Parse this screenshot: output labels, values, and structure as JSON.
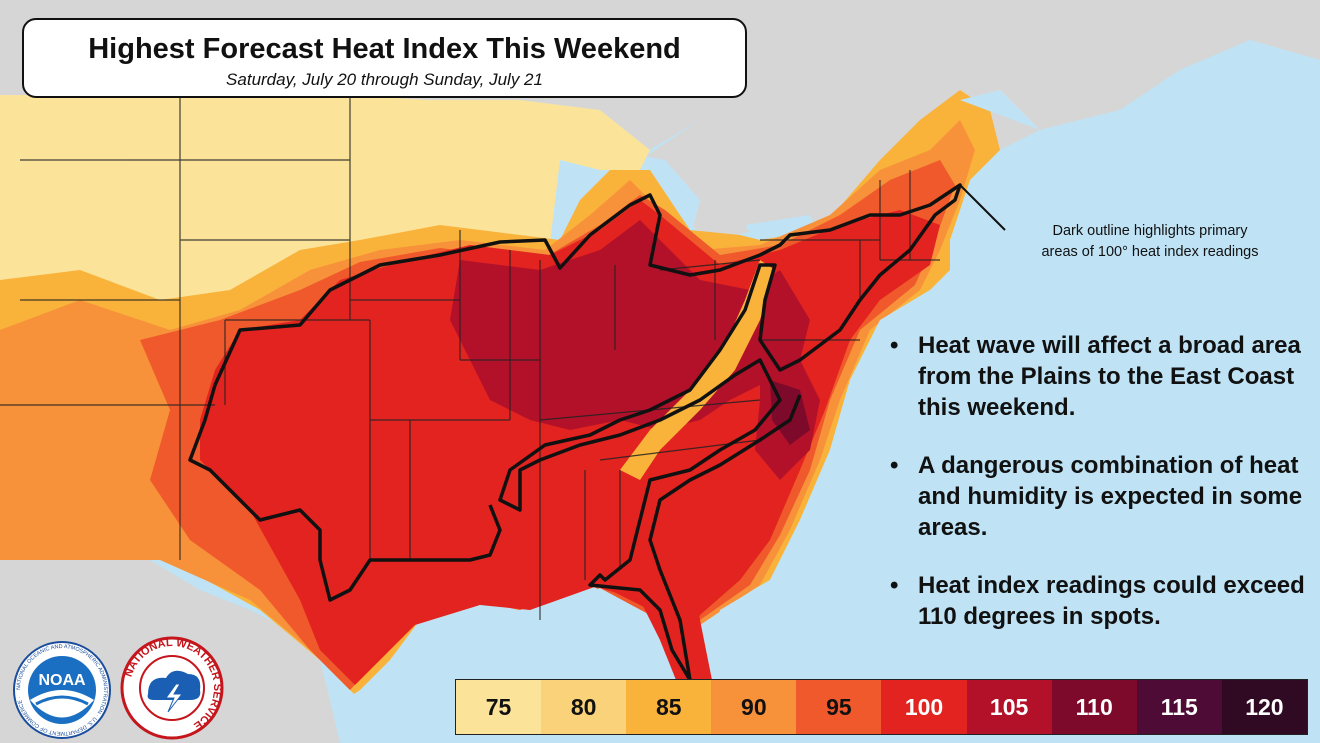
{
  "header": {
    "title": "Highest Forecast Heat Index This Weekend",
    "subtitle": "Saturday, July 20 through Sunday, July 21"
  },
  "callout": {
    "line1": "Dark outline highlights  primary",
    "line2": "areas of 100° heat index readings"
  },
  "bullets": [
    "Heat wave will affect a broad area from the Plains to the East Coast this weekend.",
    "A dangerous combination of heat and humidity is expected in some areas.",
    "Heat index readings could exceed 110 degrees in spots."
  ],
  "legend": [
    {
      "label": "75",
      "color": "#fbe39a"
    },
    {
      "label": "80",
      "color": "#fad27a"
    },
    {
      "label": "85",
      "color": "#f9b33a"
    },
    {
      "label": "90",
      "color": "#f7923a"
    },
    {
      "label": "95",
      "color": "#f0592b"
    },
    {
      "label": "100",
      "color": "#e3231f"
    },
    {
      "label": "105",
      "color": "#b3112a"
    },
    {
      "label": "110",
      "color": "#7d0a2a"
    },
    {
      "label": "115",
      "color": "#4e0b35"
    },
    {
      "label": "120",
      "color": "#2f0a22"
    }
  ],
  "logos": {
    "noaa": "NOAA",
    "noaa_ring": "NATIONAL OCEANIC AND ATMOSPHERIC ADMINISTRATION · U.S. DEPARTMENT OF COMMERCE ·",
    "nws_ring": "NATIONAL WEATHER SERVICE"
  },
  "colors": {
    "ocean": "#bfe3f5",
    "land_other": "#d6d6d6",
    "outline": "#111111"
  }
}
